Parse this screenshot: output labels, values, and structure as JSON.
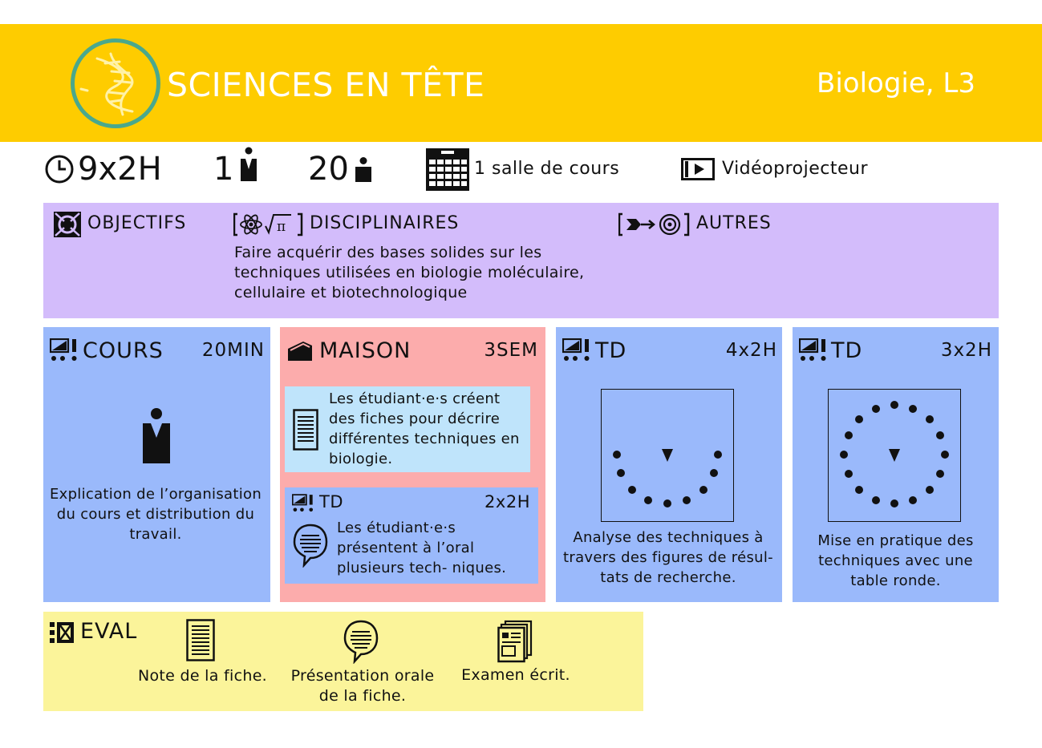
{
  "header": {
    "title": "SCIENCES EN TÊTE",
    "subject": "Biologie, L3",
    "logo_icon": "dna-icon",
    "colors": {
      "banner": "#fecc00",
      "logo_ring": "#4aa88c",
      "logo_dna": "#fff2a8"
    }
  },
  "stats": {
    "duration": "9x2H",
    "teachers": "1",
    "students": "20",
    "room": "1 salle de cours",
    "equipment": "Vidéoprojecteur"
  },
  "objectives": {
    "heading": "OBJECTIFS",
    "disciplinary_heading": "DISCIPLINAIRES",
    "other_heading": "AUTRES",
    "disciplinary_text": "Faire acquérir des bases solides sur les techniques utilisées en biologie moléculaire, cellulaire et biotechnologique",
    "color": "#d3bcfb"
  },
  "sessions": {
    "cours": {
      "title": "COURS",
      "duration": "20MIN",
      "text": "Explication de l’organisation du cours et distribution du travail."
    },
    "maison": {
      "title": "MAISON",
      "duration": "3SEM",
      "fiches_text": "Les étudiant·e·s créent des fiches pour décrire différentes techniques en biologie.",
      "td_title": "TD",
      "td_duration": "2x2H",
      "td_text": "Les étudiant·e·s présentent à l’oral plusieurs tech- niques."
    },
    "td1": {
      "title": "TD",
      "duration": "4x2H",
      "text": "Analyse des techniques à travers des figures de résul- tats de recherche."
    },
    "td2": {
      "title": "TD",
      "duration": "3x2H",
      "text": "Mise en pratique des techniques avec une table ronde."
    }
  },
  "eval": {
    "title": "EVAL",
    "items": [
      {
        "icon": "document-icon",
        "label": "Note de la fiche."
      },
      {
        "icon": "speech-bubble-icon",
        "label": "Présentation orale de la fiche."
      },
      {
        "icon": "exam-papers-icon",
        "label": "Examen écrit."
      }
    ],
    "color": "#fbf49a"
  }
}
